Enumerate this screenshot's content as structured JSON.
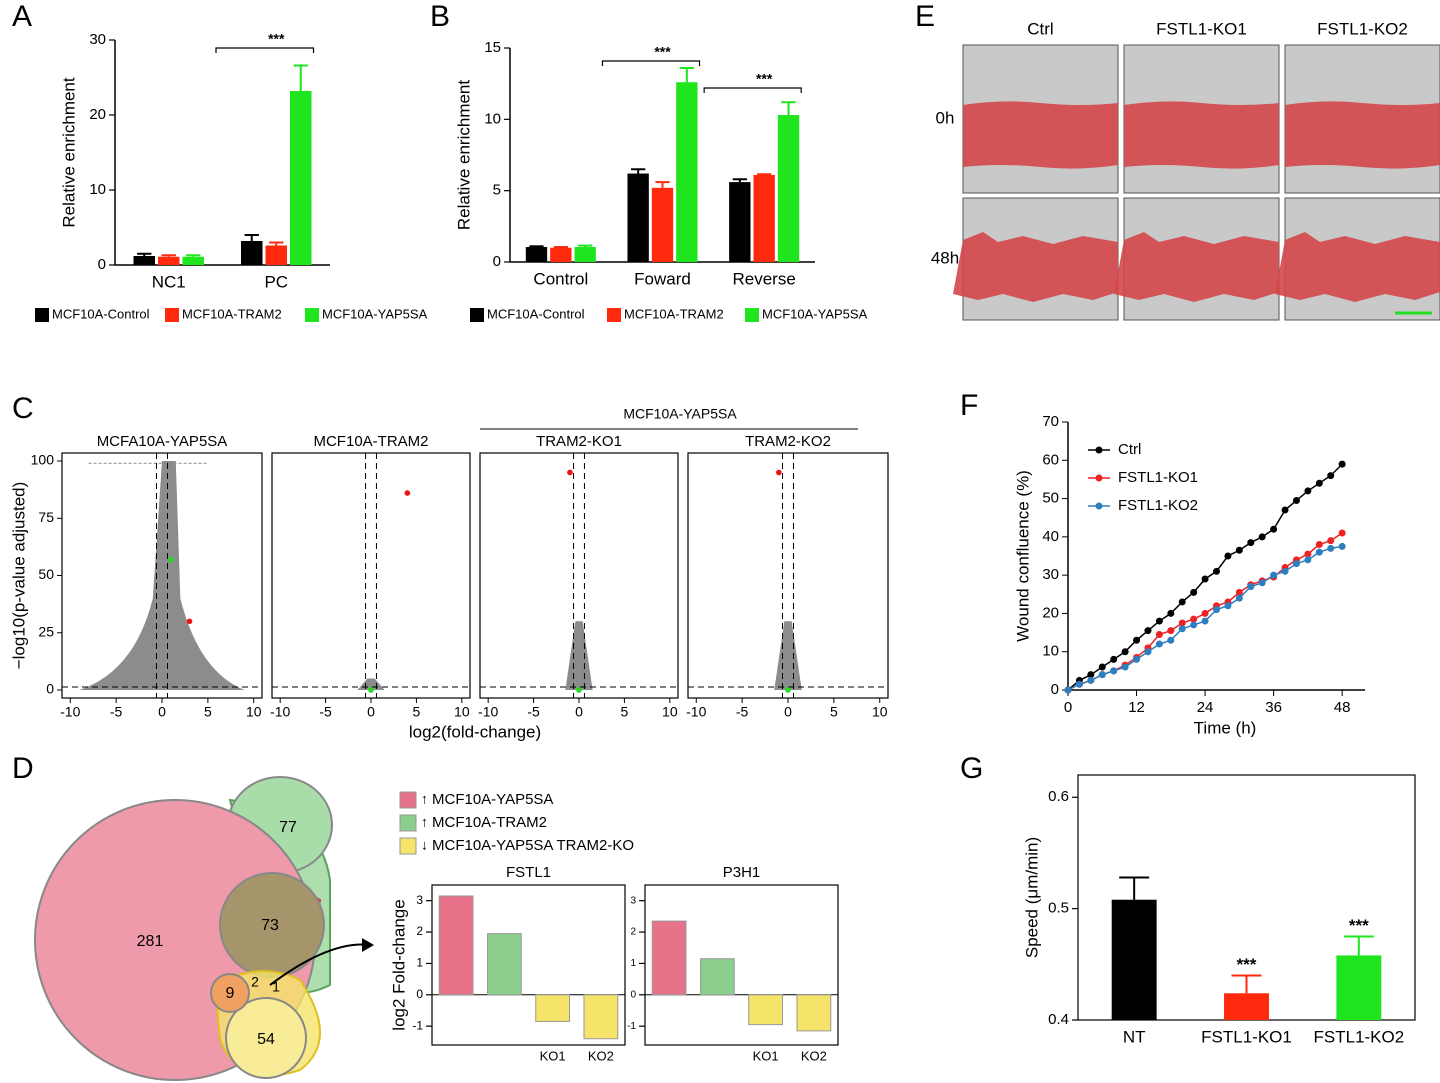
{
  "panel_labels": [
    "A",
    "B",
    "C",
    "D",
    "E",
    "F",
    "G"
  ],
  "wound_images": {
    "columns": [
      "Ctrl",
      "FSTL1-KO1",
      "FSTL1-KO2"
    ],
    "rows": [
      "0h",
      "48h"
    ]
  },
  "venn": {
    "counts": [
      281,
      77,
      73,
      9,
      2,
      1,
      54
    ],
    "legend": [
      {
        "label": "MCF10A-YAP5SA",
        "arrow": "↑",
        "color": "#e8728a"
      },
      {
        "label": "MCF10A-TRAM2",
        "arrow": "↑",
        "color": "#8ccf8c"
      },
      {
        "label": "MCF10A-YAP5SA TRAM2-KO",
        "arrow": "↓",
        "color": "#f5e36a"
      }
    ]
  },
  "chart_data": [
    {
      "type": "bar",
      "ylabel": "Relative enrichment",
      "categories": [
        "NC1",
        "PC"
      ],
      "series": [
        {
          "name": "MCF10A-Control",
          "color": "#000000",
          "values": [
            1.2,
            3.2
          ],
          "errors": [
            0.3,
            0.8
          ]
        },
        {
          "name": "MCF10A-TRAM2",
          "color": "#ff2a0e",
          "values": [
            1.1,
            2.6
          ],
          "errors": [
            0.2,
            0.4
          ]
        },
        {
          "name": "MCF10A-YAP5SA",
          "color": "#1fe51f",
          "values": [
            1.1,
            23.2
          ],
          "errors": [
            0.2,
            3.4
          ]
        }
      ],
      "ylim": [
        0,
        30
      ],
      "yticks": [
        0,
        10,
        20,
        30
      ],
      "annotations": [
        "***"
      ]
    },
    {
      "type": "bar",
      "ylabel": "Relative enrichment",
      "categories": [
        "Control",
        "Foward",
        "Reverse"
      ],
      "series": [
        {
          "name": "MCF10A-Control",
          "color": "#000000",
          "values": [
            1.05,
            6.2,
            5.6
          ],
          "errors": [
            0.05,
            0.3,
            0.2
          ]
        },
        {
          "name": "MCF10A-TRAM2",
          "color": "#ff2a0e",
          "values": [
            1.0,
            5.2,
            6.1
          ],
          "errors": [
            0.05,
            0.4,
            0.05
          ]
        },
        {
          "name": "MCF10A-YAP5SA",
          "color": "#1fe51f",
          "values": [
            1.05,
            12.6,
            10.3
          ],
          "errors": [
            0.1,
            1.0,
            0.9
          ]
        }
      ],
      "ylim": [
        0,
        15
      ],
      "yticks": [
        0,
        5,
        10,
        15
      ],
      "annotations": [
        "***",
        "***"
      ]
    },
    {
      "type": "volcano",
      "xlabel": "log2(fold-change)",
      "ylabel": "−log10(p-value adjusted)",
      "group_title": "MCF10A-YAP5SA",
      "xlim": [
        -10.9,
        10.9
      ],
      "ylim": [
        -3.5,
        103.5
      ],
      "xticks": [
        -10,
        -5,
        0,
        5,
        10
      ],
      "yticks": [
        0,
        25,
        50,
        75,
        100
      ],
      "vlines": [
        -0.6,
        0.6
      ],
      "hline": 1.3,
      "subplots": [
        {
          "title": "MCFA10A-YAP5SA",
          "series": [
            {
              "color": "#22dd22",
              "x": [
                1
              ],
              "values": [
                57
              ]
            },
            {
              "color": "#ee1111",
              "x": [
                3
              ],
              "values": [
                30
              ]
            }
          ]
        },
        {
          "title": "MCF10A-TRAM2",
          "series": [
            {
              "color": "#ee1111",
              "x": [
                4
              ],
              "values": [
                86
              ]
            },
            {
              "color": "#22dd22",
              "x": [
                0
              ],
              "values": [
                0
              ]
            }
          ]
        },
        {
          "title": "TRAM2-KO1",
          "series": [
            {
              "color": "#ee1111",
              "x": [
                -1
              ],
              "values": [
                95
              ]
            },
            {
              "color": "#22dd22",
              "x": [
                0
              ],
              "values": [
                0
              ]
            }
          ]
        },
        {
          "title": "TRAM2-KO2",
          "series": [
            {
              "color": "#ee1111",
              "x": [
                -1
              ],
              "values": [
                95
              ]
            },
            {
              "color": "#22dd22",
              "x": [
                0
              ],
              "values": [
                0
              ]
            }
          ]
        }
      ]
    },
    {
      "type": "bar",
      "title": "FSTL1",
      "ylabel": "log2 Fold-change",
      "categories": [
        null,
        null,
        "KO1",
        "KO2"
      ],
      "values": [
        3.15,
        1.95,
        -0.85,
        -1.4
      ],
      "colors": [
        "#e8728a",
        "#8ccf8c",
        "#f5e36a",
        "#f5e36a"
      ],
      "ylim": [
        -1.6,
        3.5
      ],
      "yticks": [
        -1,
        0,
        1,
        2,
        3
      ]
    },
    {
      "type": "bar",
      "title": "P3H1",
      "categories": [
        null,
        null,
        "KO1",
        "KO2"
      ],
      "values": [
        2.35,
        1.15,
        -0.95,
        -1.15
      ],
      "colors": [
        "#e8728a",
        "#8ccf8c",
        "#f5e36a",
        "#f5e36a"
      ],
      "ylim": [
        -1.6,
        3.5
      ],
      "yticks": [
        -1,
        0,
        1,
        2,
        3
      ]
    },
    {
      "type": "line",
      "xlabel": "Time (h)",
      "ylabel": "Wound confluence (%)",
      "x": [
        0,
        2,
        4,
        6,
        8,
        10,
        12,
        14,
        16,
        18,
        20,
        22,
        24,
        26,
        28,
        30,
        32,
        34,
        36,
        38,
        40,
        42,
        44,
        46,
        48
      ],
      "series": [
        {
          "name": "Ctrl",
          "color": "#000000",
          "values": [
            0,
            2.5,
            4,
            6,
            8,
            10,
            13,
            15.5,
            18,
            20,
            23,
            25.5,
            29,
            31,
            35,
            36.5,
            38.5,
            40,
            42,
            47,
            49.5,
            52,
            54,
            56,
            59
          ]
        },
        {
          "name": "FSTL1-KO1",
          "color": "#ee2222",
          "values": [
            0,
            1.5,
            2.5,
            4,
            5,
            6.5,
            8.5,
            11,
            14.5,
            15.5,
            17.5,
            18.5,
            20,
            22,
            23,
            25.5,
            27.5,
            28.5,
            29.5,
            32,
            34,
            35.5,
            38,
            39,
            41
          ]
        },
        {
          "name": "FSTL1-KO2",
          "color": "#2c7fc0",
          "values": [
            0,
            1.5,
            2.5,
            4,
            5,
            6,
            8,
            10,
            12,
            13,
            16,
            17,
            18,
            21,
            22,
            24,
            27,
            28,
            30,
            31,
            33,
            34,
            36,
            37,
            37.5
          ]
        }
      ],
      "xlim": [
        0,
        52
      ],
      "xticks": [
        0,
        12,
        24,
        36,
        48
      ],
      "ylim": [
        0,
        70
      ],
      "yticks": [
        0,
        10,
        20,
        30,
        40,
        50,
        60,
        70
      ],
      "legend": "upper left"
    },
    {
      "type": "bar",
      "ylabel": "Speed (μm/min)",
      "categories": [
        "NT",
        "FSTL1-KO1",
        "FSTL1-KO2"
      ],
      "values": [
        0.508,
        0.424,
        0.458
      ],
      "errors": [
        0.02,
        0.016,
        0.017
      ],
      "colors": [
        "#000000",
        "#ff2a0e",
        "#1fe51f"
      ],
      "ylim": [
        0.4,
        0.62
      ],
      "yticks": [
        0.4,
        0.5,
        0.6
      ],
      "annotations": [
        "***",
        "***"
      ]
    }
  ]
}
